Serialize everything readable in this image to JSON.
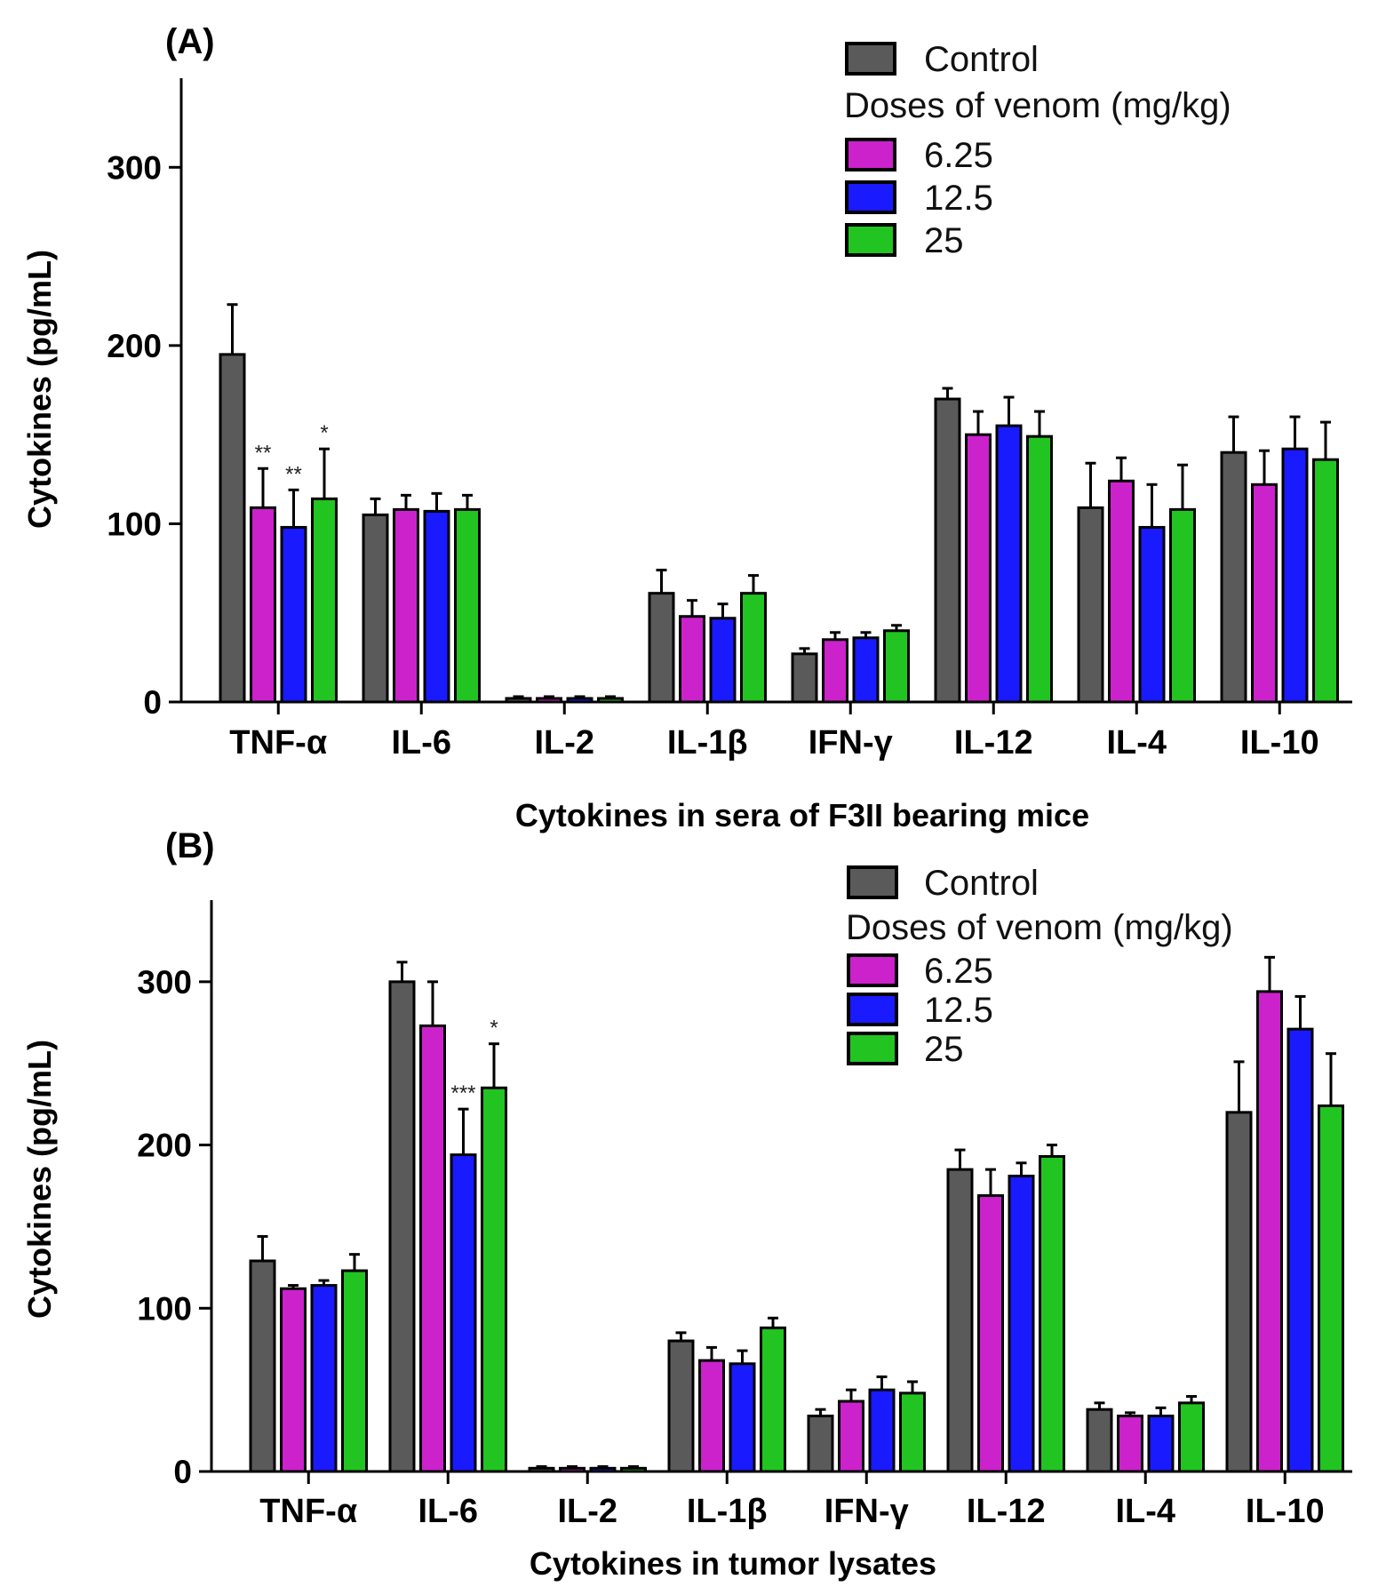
{
  "colors": {
    "Control": "#5a5a5a",
    "6.25": "#cc22cc",
    "12.5": "#1a1aff",
    "25": "#22c422"
  },
  "chart_data": [
    {
      "type": "bar",
      "panel_label": "(A)",
      "ylabel": "Cytokines (pg/mL)",
      "xlabel": "Cytokines in sera of F3II bearing mice",
      "ylim": [
        0,
        350
      ],
      "yticks": [
        0,
        100,
        200,
        300
      ],
      "categories": [
        "TNF-α",
        "IL-6",
        "IL-2",
        "IL-1β",
        "IFN-γ",
        "IL-12",
        "IL-4",
        "IL-10"
      ],
      "legend": {
        "control_label": "Control",
        "dose_title": "Doses of venom (mg/kg)",
        "entries": [
          "6.25",
          "12.5",
          "25"
        ]
      },
      "series": [
        {
          "name": "Control",
          "values": [
            195,
            105,
            2,
            61,
            27,
            170,
            109,
            140
          ],
          "errors": [
            28,
            9,
            1,
            13,
            3,
            6,
            25,
            20
          ]
        },
        {
          "name": "6.25",
          "values": [
            109,
            108,
            2,
            48,
            35,
            150,
            124,
            122
          ],
          "errors": [
            22,
            8,
            1,
            9,
            4,
            13,
            13,
            19
          ]
        },
        {
          "name": "12.5",
          "values": [
            98,
            107,
            2,
            47,
            36,
            155,
            98,
            142
          ],
          "errors": [
            21,
            10,
            1,
            8,
            3,
            16,
            24,
            18
          ]
        },
        {
          "name": "25",
          "values": [
            114,
            108,
            2,
            61,
            40,
            149,
            108,
            136
          ],
          "errors": [
            28,
            8,
            1,
            10,
            3,
            14,
            25,
            21
          ]
        }
      ],
      "annotations": [
        {
          "category": "TNF-α",
          "series": "6.25",
          "text": "**"
        },
        {
          "category": "TNF-α",
          "series": "12.5",
          "text": "**"
        },
        {
          "category": "TNF-α",
          "series": "25",
          "text": "*"
        }
      ]
    },
    {
      "type": "bar",
      "panel_label": "(B)",
      "ylabel": "Cytokines (pg/mL)",
      "xlabel": "Cytokines in tumor lysates",
      "ylim": [
        0,
        350
      ],
      "yticks": [
        0,
        100,
        200,
        300
      ],
      "categories": [
        "TNF-α",
        "IL-6",
        "IL-2",
        "IL-1β",
        "IFN-γ",
        "IL-12",
        "IL-4",
        "IL-10"
      ],
      "legend": {
        "control_label": "Control",
        "dose_title": "Doses of venom (mg/kg)",
        "entries": [
          "6.25",
          "12.5",
          "25"
        ]
      },
      "series": [
        {
          "name": "Control",
          "values": [
            129,
            300,
            2,
            80,
            34,
            185,
            38,
            220
          ],
          "errors": [
            15,
            12,
            1,
            5,
            4,
            12,
            4,
            31
          ]
        },
        {
          "name": "6.25",
          "values": [
            112,
            273,
            2,
            68,
            43,
            169,
            34,
            294
          ],
          "errors": [
            2,
            27,
            1,
            8,
            7,
            16,
            2,
            21
          ]
        },
        {
          "name": "12.5",
          "values": [
            114,
            194,
            2,
            66,
            50,
            181,
            34,
            271
          ],
          "errors": [
            3,
            28,
            1,
            8,
            8,
            8,
            5,
            20
          ]
        },
        {
          "name": "25",
          "values": [
            123,
            235,
            2,
            88,
            48,
            193,
            42,
            224
          ],
          "errors": [
            10,
            27,
            1,
            6,
            7,
            7,
            4,
            32
          ]
        }
      ],
      "annotations": [
        {
          "category": "IL-6",
          "series": "12.5",
          "text": "***"
        },
        {
          "category": "IL-6",
          "series": "25",
          "text": "*"
        }
      ]
    }
  ]
}
